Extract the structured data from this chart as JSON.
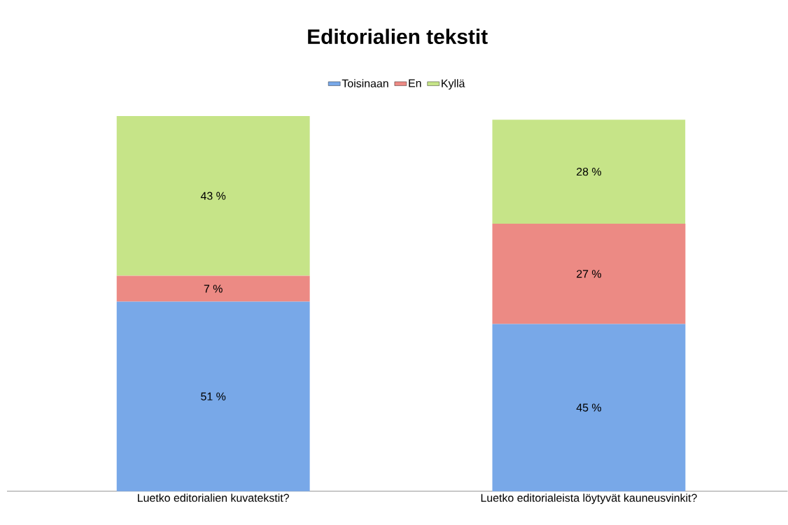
{
  "chart_data": {
    "type": "bar",
    "stacked": true,
    "title": "Editorialien tekstit",
    "categories": [
      "Luetko editorialien kuvatekstit?",
      "Luetko editorialeista löytyvät kauneusvinkit?"
    ],
    "series": [
      {
        "name": "Toisinaan",
        "color": "#78a8e8",
        "values": [
          51,
          45
        ],
        "value_labels": [
          "51 %",
          "45 %"
        ]
      },
      {
        "name": "En",
        "color": "#ec8a84",
        "values": [
          7,
          27
        ],
        "value_labels": [
          "7 %",
          "27 %"
        ]
      },
      {
        "name": "Kyllä",
        "color": "#c6e488",
        "values": [
          43,
          28
        ],
        "value_labels": [
          "43 %",
          "28 %"
        ]
      }
    ],
    "legend": "top"
  }
}
